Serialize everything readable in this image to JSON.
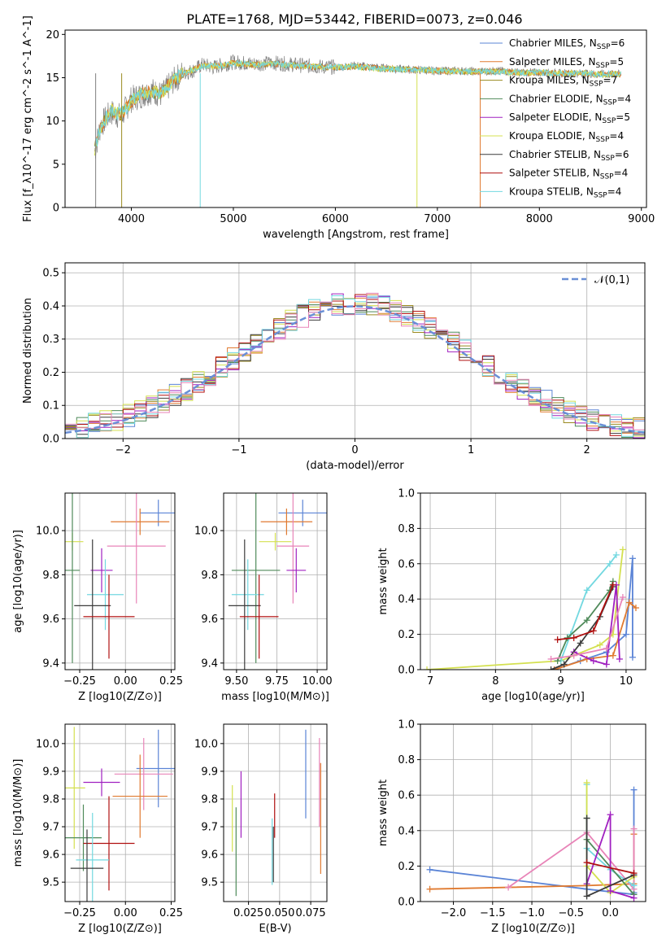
{
  "figure_title": "PLATE=1768, MJD=53442, FIBERID=0073, z=0.046",
  "colors": {
    "Chabrier MILES": "#5b84d6",
    "Salpeter MILES": "#e07a30",
    "Kroupa MILES": "#9a8a20",
    "Chabrier ELODIE": "#4f8a5a",
    "Salpeter ELODIE": "#a020c0",
    "Kroupa ELODIE": "#d4e050",
    "Chabrier STELIB": "#3c3c3c",
    "Salpeter STELIB": "#b01010",
    "Kroupa STELIB": "#72d8e0",
    "spectrum": "#808080",
    "pink": "#e884b8",
    "normal_curve": "#6a8fd6"
  },
  "legend_models": [
    {
      "name": "Chabrier MILES",
      "nssp": "6"
    },
    {
      "name": "Salpeter MILES",
      "nssp": "5"
    },
    {
      "name": "Kroupa MILES",
      "nssp": "7"
    },
    {
      "name": "Chabrier ELODIE",
      "nssp": "4"
    },
    {
      "name": "Salpeter ELODIE",
      "nssp": "5"
    },
    {
      "name": "Kroupa ELODIE",
      "nssp": "4"
    },
    {
      "name": "Chabrier STELIB",
      "nssp": "6"
    },
    {
      "name": "Salpeter STELIB",
      "nssp": "4"
    },
    {
      "name": "Kroupa STELIB",
      "nssp": "4"
    }
  ],
  "chart_data": [
    {
      "id": "spectrum",
      "type": "line",
      "xlabel": "wavelength [Angstrom, rest frame]",
      "ylabel": "Flux [f_λ10^-17 erg cm^-2 s^-1 A^-1]",
      "xlim": [
        3350,
        9050
      ],
      "ylim": [
        0,
        20.5
      ],
      "xticks": [
        4000,
        5000,
        6000,
        7000,
        8000,
        9000
      ],
      "yticks": [
        0,
        5,
        10,
        15,
        20
      ],
      "grid": false,
      "legend_position": "top-right",
      "series": [
        {
          "name": "data",
          "x": [
            3640,
            3700,
            3800,
            3900,
            4000,
            4100,
            4200,
            4300,
            4400,
            4500,
            4600,
            4700,
            4800,
            4900,
            5000,
            5200,
            5400,
            5600,
            5800,
            6000,
            6200,
            6400,
            6600,
            6800,
            7000,
            7200,
            7400,
            7600,
            7800,
            8000,
            8200,
            8400,
            8600,
            8800
          ],
          "y": [
            6.5,
            9.5,
            11,
            10.5,
            12.5,
            13,
            13.5,
            13,
            14.5,
            15.5,
            15.8,
            16.5,
            16.2,
            16.5,
            16.8,
            16.6,
            16.7,
            16.5,
            16.3,
            16.2,
            16.4,
            16.2,
            16.0,
            15.9,
            15.8,
            15.8,
            15.7,
            15.8,
            15.6,
            15.6,
            15.5,
            15.5,
            15.4,
            15.4
          ]
        },
        {
          "name": "model",
          "x": [
            3640,
            3700,
            3800,
            3900,
            4000,
            4100,
            4200,
            4300,
            4400,
            4500,
            4600,
            4700,
            4800,
            4900,
            5000,
            5200,
            5400,
            5600,
            5800,
            6000,
            6200,
            6400,
            6600,
            6800,
            7000,
            7200,
            7400,
            7600,
            7800,
            8000,
            8200,
            8400,
            8600,
            8800
          ],
          "y": [
            6.8,
            9.2,
            11.2,
            10.8,
            12.3,
            13.2,
            13.4,
            13.2,
            14.6,
            15.4,
            15.9,
            16.4,
            16.3,
            16.4,
            16.7,
            16.5,
            16.6,
            16.4,
            16.3,
            16.2,
            16.3,
            16.1,
            16.0,
            15.9,
            15.8,
            15.7,
            15.7,
            15.7,
            15.6,
            15.6,
            15.5,
            15.5,
            15.4,
            15.4
          ]
        }
      ]
    },
    {
      "id": "normed_residuals",
      "type": "line",
      "xlabel": "(data-model)/error",
      "ylabel": "Normed distribution",
      "xlim": [
        -2.5,
        2.5
      ],
      "ylim": [
        0,
        0.53
      ],
      "xticks": [
        -2,
        -1,
        0,
        1,
        2
      ],
      "yticks": [
        0.0,
        0.1,
        0.2,
        0.3,
        0.4,
        0.5
      ],
      "grid": true,
      "legend_position": "top-right",
      "normal_label": "𝒩(0,1)",
      "bin_width": 0.1,
      "series": [
        {
          "name": "N(0,1)",
          "x": [
            -2.5,
            -2.0,
            -1.5,
            -1.0,
            -0.5,
            0,
            0.5,
            1.0,
            1.5,
            2.0,
            2.5
          ],
          "y": [
            0.018,
            0.054,
            0.13,
            0.242,
            0.352,
            0.399,
            0.352,
            0.242,
            0.13,
            0.054,
            0.018
          ]
        }
      ]
    },
    {
      "id": "age_vs_Z",
      "type": "scatter",
      "xlabel": "Z [log10(Z/Z⊙)]",
      "ylabel": "age [log10(age/yr)]",
      "xlim": [
        -0.33,
        0.27
      ],
      "ylim": [
        9.37,
        10.17
      ],
      "xticks": [
        -0.25,
        0.0,
        0.25
      ],
      "yticks": [
        9.4,
        9.6,
        9.8,
        10.0
      ],
      "grid": true,
      "points": [
        {
          "series": "Chabrier MILES",
          "x": 0.18,
          "y": 10.08,
          "xerr": 0.1,
          "yerr": 0.06
        },
        {
          "series": "Salpeter MILES",
          "x": 0.08,
          "y": 10.04,
          "xerr": 0.16,
          "yerr": 0.06
        },
        {
          "series": "Kroupa ELODIE",
          "x": -0.29,
          "y": 9.95,
          "xerr": 0.06,
          "yerr": 0.04
        },
        {
          "series": "pink",
          "x": 0.06,
          "y": 9.93,
          "xerr": 0.16,
          "yerr": 0.26
        },
        {
          "series": "Salpeter ELODIE",
          "x": -0.13,
          "y": 9.82,
          "xerr": 0.06,
          "yerr": 0.1
        },
        {
          "series": "Chabrier ELODIE",
          "x": -0.29,
          "y": 9.82,
          "xerr": 0.04,
          "yerr": 0.42
        },
        {
          "series": "Kroupa STELIB",
          "x": -0.11,
          "y": 9.71,
          "xerr": 0.1,
          "yerr": 0.16
        },
        {
          "series": "Chabrier STELIB",
          "x": -0.18,
          "y": 9.66,
          "xerr": 0.1,
          "yerr": 0.3
        },
        {
          "series": "Salpeter STELIB",
          "x": -0.09,
          "y": 9.61,
          "xerr": 0.14,
          "yerr": 0.19
        }
      ]
    },
    {
      "id": "age_vs_mass",
      "type": "scatter",
      "xlabel": "mass [log10(M/M⊙)]",
      "ylabel": "",
      "xlim": [
        9.42,
        10.06
      ],
      "ylim": [
        9.37,
        10.17
      ],
      "xticks": [
        9.5,
        9.75,
        10.0
      ],
      "yticks": [
        9.4,
        9.6,
        9.8,
        10.0
      ],
      "grid": true,
      "points": [
        {
          "series": "Chabrier MILES",
          "x": 9.91,
          "y": 10.08,
          "xerr": 0.15,
          "yerr": 0.06
        },
        {
          "series": "Salpeter MILES",
          "x": 9.81,
          "y": 10.04,
          "xerr": 0.16,
          "yerr": 0.06
        },
        {
          "series": "Kroupa ELODIE",
          "x": 9.74,
          "y": 9.95,
          "xerr": 0.1,
          "yerr": 0.04
        },
        {
          "series": "pink",
          "x": 9.85,
          "y": 9.93,
          "xerr": 0.1,
          "yerr": 0.26
        },
        {
          "series": "Salpeter ELODIE",
          "x": 9.87,
          "y": 9.82,
          "xerr": 0.06,
          "yerr": 0.1
        },
        {
          "series": "Chabrier ELODIE",
          "x": 9.62,
          "y": 9.82,
          "xerr": 0.15,
          "yerr": 0.42
        },
        {
          "series": "Kroupa STELIB",
          "x": 9.57,
          "y": 9.71,
          "xerr": 0.1,
          "yerr": 0.16
        },
        {
          "series": "Chabrier STELIB",
          "x": 9.55,
          "y": 9.66,
          "xerr": 0.1,
          "yerr": 0.3
        },
        {
          "series": "Salpeter STELIB",
          "x": 9.64,
          "y": 9.61,
          "xerr": 0.12,
          "yerr": 0.19
        }
      ]
    },
    {
      "id": "weight_vs_age",
      "type": "line",
      "xlabel": "age [log10(age/yr)]",
      "ylabel": "mass weight",
      "xlim": [
        6.85,
        10.3
      ],
      "ylim": [
        0,
        1.0
      ],
      "xticks": [
        7,
        8,
        9,
        10
      ],
      "yticks": [
        0.0,
        0.2,
        0.4,
        0.6,
        0.8,
        1.0
      ],
      "grid": true,
      "series": [
        {
          "name": "Kroupa ELODIE",
          "x": [
            6.95,
            9.0,
            9.6,
            9.8,
            9.95
          ],
          "y": [
            0.0,
            0.05,
            0.14,
            0.2,
            0.68
          ]
        },
        {
          "name": "Chabrier MILES",
          "x": [
            8.9,
            9.3,
            9.7,
            10.0,
            10.1,
            10.1
          ],
          "y": [
            0.0,
            0.05,
            0.1,
            0.2,
            0.63,
            0.07
          ]
        },
        {
          "name": "Salpeter MILES",
          "x": [
            8.9,
            9.4,
            9.8,
            10.05,
            10.15
          ],
          "y": [
            0.0,
            0.06,
            0.08,
            0.38,
            0.35
          ]
        },
        {
          "name": "Kroupa STELIB",
          "x": [
            9.0,
            9.15,
            9.4,
            9.75,
            9.85
          ],
          "y": [
            0.05,
            0.2,
            0.45,
            0.6,
            0.65
          ]
        },
        {
          "name": "Chabrier ELODIE",
          "x": [
            8.95,
            9.1,
            9.4,
            9.75,
            9.8
          ],
          "y": [
            0.05,
            0.18,
            0.28,
            0.45,
            0.5
          ]
        },
        {
          "name": "Salpeter ELODIE",
          "x": [
            9.2,
            9.5,
            9.7,
            9.85,
            9.9
          ],
          "y": [
            0.1,
            0.05,
            0.03,
            0.48,
            0.06
          ]
        },
        {
          "name": "Chabrier STELIB",
          "x": [
            8.85,
            9.05,
            9.3,
            9.6,
            9.8
          ],
          "y": [
            0.0,
            0.03,
            0.15,
            0.3,
            0.47
          ]
        },
        {
          "name": "Salpeter STELIB",
          "x": [
            8.95,
            9.2,
            9.5,
            9.8
          ],
          "y": [
            0.17,
            0.18,
            0.22,
            0.48
          ]
        },
        {
          "name": "pink",
          "x": [
            8.85,
            9.2,
            9.7,
            9.95
          ],
          "y": [
            0.06,
            0.08,
            0.12,
            0.41
          ]
        }
      ]
    },
    {
      "id": "mass_vs_Z",
      "type": "scatter",
      "xlabel": "Z [log10(Z/Z⊙)]",
      "ylabel": "mass [log10(M/M⊙)]",
      "xlim": [
        -0.33,
        0.27
      ],
      "ylim": [
        9.43,
        10.07
      ],
      "xticks": [
        -0.25,
        0.0,
        0.25
      ],
      "yticks": [
        9.5,
        9.6,
        9.7,
        9.8,
        9.9,
        10.0
      ],
      "grid": true,
      "points": [
        {
          "series": "Chabrier MILES",
          "x": 0.18,
          "y": 9.91,
          "xerr": 0.12,
          "yerr": 0.14
        },
        {
          "series": "pink",
          "x": 0.1,
          "y": 9.89,
          "xerr": 0.16,
          "yerr": 0.13
        },
        {
          "series": "Salpeter ELODIE",
          "x": -0.13,
          "y": 9.86,
          "xerr": 0.1,
          "yerr": 0.05
        },
        {
          "series": "Kroupa ELODIE",
          "x": -0.28,
          "y": 9.84,
          "xerr": 0.06,
          "yerr": 0.22
        },
        {
          "series": "Salpeter MILES",
          "x": 0.08,
          "y": 9.81,
          "xerr": 0.15,
          "yerr": 0.15
        },
        {
          "series": "Chabrier ELODIE",
          "x": -0.23,
          "y": 9.66,
          "xerr": 0.1,
          "yerr": 0.12
        },
        {
          "series": "Salpeter STELIB",
          "x": -0.09,
          "y": 9.64,
          "xerr": 0.14,
          "yerr": 0.17
        },
        {
          "series": "Kroupa STELIB",
          "x": -0.18,
          "y": 9.58,
          "xerr": 0.09,
          "yerr": 0.17
        },
        {
          "series": "Chabrier STELIB",
          "x": -0.21,
          "y": 9.55,
          "xerr": 0.09,
          "yerr": 0.14
        }
      ]
    },
    {
      "id": "mass_vs_EBV",
      "type": "scatter",
      "xlabel": "E(B-V)",
      "ylabel": "",
      "xlim": [
        0.005,
        0.088
      ],
      "ylim": [
        9.43,
        10.07
      ],
      "xticks": [
        0.025,
        0.05,
        0.075
      ],
      "yticks": [
        9.5,
        9.6,
        9.7,
        9.8,
        9.9,
        10.0
      ],
      "grid": true,
      "points": [
        {
          "series": "Chabrier MILES",
          "x": 0.071,
          "y": 9.89,
          "yerr": 0.16
        },
        {
          "series": "pink",
          "x": 0.082,
          "y": 9.86,
          "yerr": 0.16
        },
        {
          "series": "Salpeter ELODIE",
          "x": 0.019,
          "y": 9.78,
          "yerr": 0.12
        },
        {
          "series": "Kroupa ELODIE",
          "x": 0.012,
          "y": 9.73,
          "yerr": 0.12
        },
        {
          "series": "Salpeter MILES",
          "x": 0.083,
          "y": 9.73,
          "yerr": 0.2
        },
        {
          "series": "Chabrier ELODIE",
          "x": 0.015,
          "y": 9.61,
          "yerr": 0.16
        },
        {
          "series": "Salpeter STELIB",
          "x": 0.046,
          "y": 9.74,
          "yerr": 0.08
        },
        {
          "series": "Kroupa STELIB",
          "x": 0.044,
          "y": 9.61,
          "yerr": 0.12
        },
        {
          "series": "Chabrier STELIB",
          "x": 0.045,
          "y": 9.6,
          "yerr": 0.1
        }
      ]
    },
    {
      "id": "weight_vs_Z",
      "type": "line",
      "xlabel": "Z [log10(Z/Z⊙)]",
      "ylabel": "mass weight",
      "xlim": [
        -2.42,
        0.45
      ],
      "ylim": [
        0,
        1.0
      ],
      "xticks": [
        -2.0,
        -1.5,
        -1.0,
        -0.5,
        0.0
      ],
      "yticks": [
        0.0,
        0.2,
        0.4,
        0.6,
        0.8,
        1.0
      ],
      "grid": true,
      "series": [
        {
          "name": "Chabrier MILES",
          "x": [
            -2.3,
            -0.3,
            0.3,
            0.3,
            0.3
          ],
          "y": [
            0.18,
            0.07,
            0.04,
            0.63,
            0.05
          ]
        },
        {
          "name": "Salpeter MILES",
          "x": [
            -2.3,
            -0.3,
            0.3,
            0.3
          ],
          "y": [
            0.07,
            0.09,
            0.1,
            0.38
          ]
        },
        {
          "name": "pink",
          "x": [
            -1.3,
            -0.3,
            0.3,
            0.3
          ],
          "y": [
            0.08,
            0.39,
            0.07,
            0.41
          ]
        },
        {
          "name": "Kroupa STELIB",
          "x": [
            -0.3,
            -0.3,
            0.0,
            0.3
          ],
          "y": [
            0.66,
            0.3,
            0.18,
            0.09
          ]
        },
        {
          "name": "Kroupa ELODIE",
          "x": [
            -0.3,
            -0.3,
            0.0,
            0.3
          ],
          "y": [
            0.67,
            0.2,
            0.05,
            0.14
          ]
        },
        {
          "name": "Chabrier ELODIE",
          "x": [
            -0.3,
            -0.3,
            0.3
          ],
          "y": [
            0.47,
            0.35,
            0.04
          ]
        },
        {
          "name": "Salpeter ELODIE",
          "x": [
            -0.3,
            0.0,
            0.0,
            0.3
          ],
          "y": [
            0.1,
            0.49,
            0.06,
            0.02
          ]
        },
        {
          "name": "Chabrier STELIB",
          "x": [
            -0.3,
            -0.3,
            0.3
          ],
          "y": [
            0.47,
            0.03,
            0.15
          ]
        },
        {
          "name": "Salpeter STELIB",
          "x": [
            -0.3,
            0.3
          ],
          "y": [
            0.22,
            0.16
          ]
        }
      ]
    }
  ]
}
